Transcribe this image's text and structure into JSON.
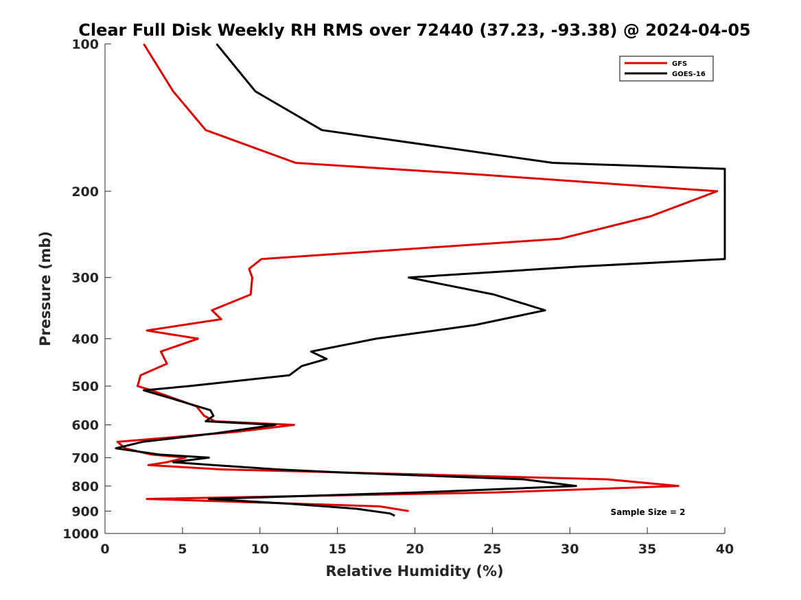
{
  "chart_data": {
    "type": "line",
    "title": "Clear Full Disk Weekly RH RMS over 72440 (37.23, -93.38) @ 2024-04-05",
    "xlabel": "Relative Humidity (%)",
    "ylabel": "Pressure (mb)",
    "xlim": [
      0,
      40
    ],
    "ylim": [
      100,
      1000
    ],
    "yscale": "log",
    "y_reversed": true,
    "xticks": [
      0,
      5,
      10,
      15,
      20,
      25,
      30,
      35,
      40
    ],
    "yticks": [
      100,
      200,
      300,
      400,
      500,
      600,
      700,
      800,
      900,
      1000
    ],
    "grid": false,
    "legend_position": "top-right",
    "annotation": "Sample Size = 2",
    "series": [
      {
        "name": "GFS",
        "color": "#e00000",
        "points": [
          [
            2.5,
            100
          ],
          [
            4.4,
            125
          ],
          [
            6.5,
            150
          ],
          [
            12.3,
            175
          ],
          [
            24.3,
            185
          ],
          [
            39.5,
            200
          ],
          [
            35.2,
            225
          ],
          [
            29.4,
            250
          ],
          [
            10.1,
            275
          ],
          [
            9.3,
            288
          ],
          [
            9.5,
            300
          ],
          [
            9.4,
            325
          ],
          [
            6.9,
            350
          ],
          [
            7.5,
            365
          ],
          [
            2.7,
            385
          ],
          [
            6.0,
            400
          ],
          [
            3.6,
            425
          ],
          [
            4.0,
            450
          ],
          [
            2.3,
            475
          ],
          [
            2.1,
            500
          ],
          [
            3.0,
            510
          ],
          [
            5.9,
            550
          ],
          [
            6.4,
            575
          ],
          [
            7.1,
            590
          ],
          [
            12.2,
            600
          ],
          [
            8.5,
            620
          ],
          [
            0.8,
            650
          ],
          [
            1.3,
            670
          ],
          [
            3.0,
            690
          ],
          [
            5.2,
            700
          ],
          [
            4.0,
            715
          ],
          [
            2.8,
            725
          ],
          [
            7.6,
            740
          ],
          [
            15.0,
            750
          ],
          [
            32.4,
            775
          ],
          [
            37.0,
            800
          ],
          [
            25.0,
            825
          ],
          [
            2.7,
            850
          ],
          [
            17.7,
            880
          ],
          [
            19.6,
            900
          ]
        ]
      },
      {
        "name": "GOES-16",
        "color": "#000000",
        "points": [
          [
            7.2,
            100
          ],
          [
            9.7,
            125
          ],
          [
            14.0,
            150
          ],
          [
            28.9,
            175
          ],
          [
            40.0,
            180
          ],
          [
            40.0,
            275
          ],
          [
            30.6,
            285
          ],
          [
            19.6,
            300
          ],
          [
            25.1,
            325
          ],
          [
            28.4,
            350
          ],
          [
            23.9,
            375
          ],
          [
            17.5,
            400
          ],
          [
            13.3,
            425
          ],
          [
            14.3,
            440
          ],
          [
            12.7,
            455
          ],
          [
            11.9,
            475
          ],
          [
            5.4,
            500
          ],
          [
            2.5,
            510
          ],
          [
            4.3,
            530
          ],
          [
            6.8,
            560
          ],
          [
            7.0,
            575
          ],
          [
            6.5,
            590
          ],
          [
            11.0,
            600
          ],
          [
            7.0,
            625
          ],
          [
            2.4,
            650
          ],
          [
            0.7,
            670
          ],
          [
            3.5,
            690
          ],
          [
            6.7,
            700
          ],
          [
            4.4,
            715
          ],
          [
            7.0,
            725
          ],
          [
            11.2,
            740
          ],
          [
            15.0,
            750
          ],
          [
            27.0,
            775
          ],
          [
            30.4,
            800
          ],
          [
            20.0,
            825
          ],
          [
            6.7,
            850
          ],
          [
            12.0,
            870
          ],
          [
            16.2,
            890
          ],
          [
            18.4,
            910
          ],
          [
            18.7,
            920
          ]
        ]
      }
    ]
  }
}
